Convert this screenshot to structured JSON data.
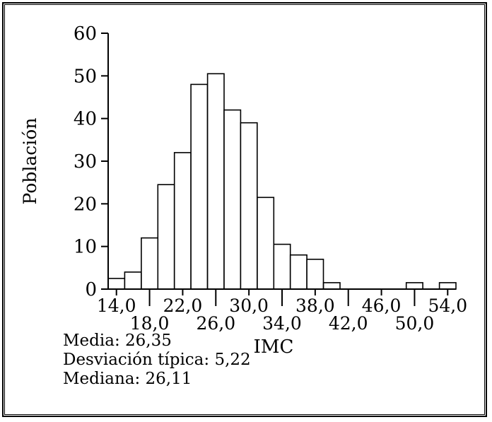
{
  "figure": {
    "ylabel": "Población",
    "xlabel": "IMC"
  },
  "stats": {
    "lines": [
      "Media: 26,35",
      "Desviación típica: 5,22",
      "Mediana: 26,11"
    ]
  },
  "chart_data": {
    "type": "bar",
    "title": "",
    "xlabel": "IMC",
    "ylabel": "Población",
    "bin_width": 2,
    "bin_centers": [
      14,
      16,
      18,
      20,
      22,
      24,
      26,
      28,
      30,
      32,
      34,
      36,
      38,
      40,
      42,
      44,
      46,
      48,
      50,
      52,
      54
    ],
    "values": [
      2.5,
      4,
      12,
      24.5,
      32,
      48,
      50.5,
      42,
      39,
      21.5,
      10.5,
      8,
      7,
      1.5,
      0,
      0,
      0,
      0,
      1.5,
      0,
      1.5
    ],
    "xlim": [
      13,
      55
    ],
    "ylim": [
      0,
      60
    ],
    "x_ticks": [
      14,
      18,
      22,
      26,
      30,
      34,
      38,
      42,
      46,
      50,
      54
    ],
    "x_tick_labels": [
      "14,0",
      "18,0",
      "22,0",
      "26,0",
      "30,0",
      "34,0",
      "38,0",
      "42,0",
      "46,0",
      "50,0",
      "54,0"
    ],
    "y_ticks": [
      0,
      10,
      20,
      30,
      40,
      50,
      60
    ],
    "grid": false,
    "legend": "none",
    "bar_fill": "#ffffff",
    "bar_stroke": "#000000",
    "annotations": [
      "Media: 26,35",
      "Desviación típica: 5,22",
      "Mediana: 26,11"
    ]
  }
}
